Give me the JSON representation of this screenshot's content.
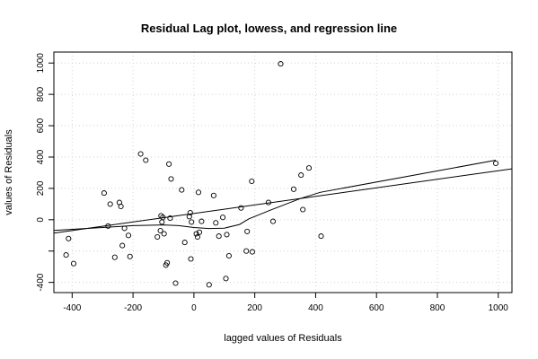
{
  "chart_data": {
    "type": "scatter",
    "title": "Residual Lag plot, lowess, and regression line",
    "xlabel": "lagged values of Residuals",
    "ylabel": "values of Residuals",
    "xlim": [
      -460,
      1045
    ],
    "ylim": [
      -465,
      1070
    ],
    "grid": true,
    "x_ticks": [
      -400,
      -200,
      0,
      200,
      400,
      600,
      800,
      1000
    ],
    "y_ticks": [
      -400,
      -200,
      0,
      200,
      400,
      600,
      800,
      1000
    ],
    "x_tick_labels": [
      "-400",
      "-200",
      "0",
      "200",
      "400",
      "600",
      "800",
      "1000"
    ],
    "y_tick_labels": [
      "-400",
      "",
      "0",
      "200",
      "400",
      "600",
      "800",
      "1000"
    ],
    "points": [
      [
        -420,
        -225
      ],
      [
        -412,
        -120
      ],
      [
        -395,
        -280
      ],
      [
        -295,
        170
      ],
      [
        -282,
        -40
      ],
      [
        -275,
        100
      ],
      [
        -260,
        -240
      ],
      [
        -245,
        110
      ],
      [
        -240,
        85
      ],
      [
        -235,
        -165
      ],
      [
        -228,
        -55
      ],
      [
        -215,
        -100
      ],
      [
        -210,
        -235
      ],
      [
        -175,
        420
      ],
      [
        -158,
        380
      ],
      [
        -120,
        -110
      ],
      [
        -110,
        -70
      ],
      [
        -108,
        25
      ],
      [
        -105,
        -15
      ],
      [
        -102,
        15
      ],
      [
        -98,
        -90
      ],
      [
        -92,
        -290
      ],
      [
        -88,
        -275
      ],
      [
        -82,
        355
      ],
      [
        -78,
        10
      ],
      [
        -75,
        260
      ],
      [
        -60,
        -405
      ],
      [
        -40,
        190
      ],
      [
        -30,
        -145
      ],
      [
        -15,
        20
      ],
      [
        -12,
        45
      ],
      [
        -10,
        -250
      ],
      [
        -8,
        -15
      ],
      [
        8,
        -90
      ],
      [
        12,
        -110
      ],
      [
        15,
        175
      ],
      [
        18,
        -80
      ],
      [
        25,
        -10
      ],
      [
        50,
        -415
      ],
      [
        65,
        155
      ],
      [
        72,
        -20
      ],
      [
        82,
        -105
      ],
      [
        95,
        15
      ],
      [
        105,
        -375
      ],
      [
        108,
        -95
      ],
      [
        115,
        -230
      ],
      [
        155,
        75
      ],
      [
        172,
        -200
      ],
      [
        175,
        -75
      ],
      [
        190,
        245
      ],
      [
        192,
        -205
      ],
      [
        245,
        110
      ],
      [
        260,
        -10
      ],
      [
        285,
        995
      ],
      [
        328,
        195
      ],
      [
        352,
        285
      ],
      [
        358,
        65
      ],
      [
        378,
        330
      ],
      [
        418,
        -105
      ],
      [
        992,
        360
      ]
    ],
    "series": [
      {
        "values": [
          [
            -460,
            -68
          ],
          [
            -300,
            -50
          ],
          [
            -200,
            -38
          ],
          [
            -100,
            -33
          ],
          [
            -50,
            -38
          ],
          [
            0,
            -50
          ],
          [
            50,
            -56
          ],
          [
            100,
            -54
          ],
          [
            150,
            -30
          ],
          [
            180,
            5
          ],
          [
            250,
            60
          ],
          [
            350,
            135
          ],
          [
            415,
            175
          ],
          [
            992,
            380
          ]
        ]
      },
      {
        "values": [
          [
            -460,
            -85
          ],
          [
            1045,
            325
          ]
        ]
      }
    ]
  }
}
